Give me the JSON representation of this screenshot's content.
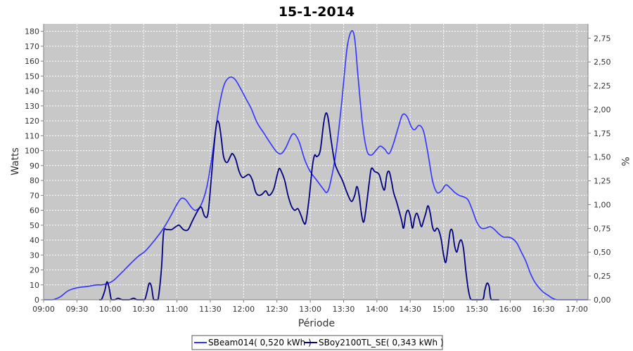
{
  "chart_data": {
    "type": "line",
    "title": "15-1-2014",
    "xlabel": "Période",
    "ylabel": "Watts",
    "y2label": "%",
    "x_ticks": [
      "09:00",
      "09:30",
      "10:00",
      "10:30",
      "11:00",
      "11:30",
      "12:00",
      "12:30",
      "13:00",
      "13:30",
      "14:00",
      "14:30",
      "15:00",
      "15:30",
      "16:00",
      "16:30",
      "17:00"
    ],
    "xlim": [
      540,
      1030
    ],
    "ylim": [
      0,
      185
    ],
    "y_ticks": [
      0,
      10,
      20,
      30,
      40,
      50,
      60,
      70,
      80,
      90,
      100,
      110,
      120,
      130,
      140,
      150,
      160,
      170,
      180
    ],
    "y2lim": [
      0,
      2.9
    ],
    "y2_ticks": [
      "0,00",
      "0,25",
      "0,50",
      "0,75",
      "1,00",
      "1,25",
      "1,50",
      "1,75",
      "2,00",
      "2,25",
      "2,50",
      "2,75"
    ],
    "grid": true,
    "legend_position": "bottom",
    "series": [
      {
        "name": "SBeam014( 0,520 kWh )",
        "color": "#3333ff",
        "points": [
          [
            540,
            0
          ],
          [
            548,
            0
          ],
          [
            555,
            2
          ],
          [
            562,
            6
          ],
          [
            570,
            8
          ],
          [
            580,
            9
          ],
          [
            588,
            10
          ],
          [
            592,
            10
          ],
          [
            598,
            11
          ],
          [
            603,
            13
          ],
          [
            610,
            18
          ],
          [
            618,
            24
          ],
          [
            625,
            29
          ],
          [
            632,
            33
          ],
          [
            640,
            40
          ],
          [
            648,
            48
          ],
          [
            655,
            57
          ],
          [
            660,
            64
          ],
          [
            664,
            68
          ],
          [
            668,
            67
          ],
          [
            673,
            62
          ],
          [
            677,
            60
          ],
          [
            682,
            64
          ],
          [
            687,
            76
          ],
          [
            692,
            98
          ],
          [
            697,
            125
          ],
          [
            702,
            143
          ],
          [
            707,
            149
          ],
          [
            712,
            148
          ],
          [
            717,
            142
          ],
          [
            722,
            135
          ],
          [
            727,
            128
          ],
          [
            732,
            119
          ],
          [
            738,
            112
          ],
          [
            745,
            104
          ],
          [
            750,
            99
          ],
          [
            754,
            98
          ],
          [
            758,
            102
          ],
          [
            763,
            110
          ],
          [
            766,
            111
          ],
          [
            770,
            106
          ],
          [
            775,
            94
          ],
          [
            780,
            86
          ],
          [
            786,
            80
          ],
          [
            792,
            74
          ],
          [
            795,
            72
          ],
          [
            798,
            78
          ],
          [
            803,
            98
          ],
          [
            808,
            130
          ],
          [
            813,
            168
          ],
          [
            817,
            180
          ],
          [
            820,
            175
          ],
          [
            823,
            150
          ],
          [
            827,
            118
          ],
          [
            831,
            100
          ],
          [
            835,
            97
          ],
          [
            839,
            100
          ],
          [
            843,
            103
          ],
          [
            847,
            101
          ],
          [
            851,
            98
          ],
          [
            855,
            105
          ],
          [
            859,
            115
          ],
          [
            863,
            124
          ],
          [
            867,
            123
          ],
          [
            871,
            116
          ],
          [
            874,
            114
          ],
          [
            878,
            117
          ],
          [
            882,
            113
          ],
          [
            886,
            98
          ],
          [
            890,
            80
          ],
          [
            894,
            72
          ],
          [
            898,
            73
          ],
          [
            902,
            77
          ],
          [
            906,
            75
          ],
          [
            910,
            72
          ],
          [
            914,
            70
          ],
          [
            918,
            69
          ],
          [
            922,
            67
          ],
          [
            926,
            60
          ],
          [
            930,
            52
          ],
          [
            934,
            48
          ],
          [
            938,
            48
          ],
          [
            942,
            49
          ],
          [
            946,
            47
          ],
          [
            950,
            44
          ],
          [
            954,
            42
          ],
          [
            958,
            42
          ],
          [
            962,
            41
          ],
          [
            966,
            38
          ],
          [
            970,
            32
          ],
          [
            974,
            26
          ],
          [
            978,
            18
          ],
          [
            982,
            12
          ],
          [
            986,
            8
          ],
          [
            990,
            5
          ],
          [
            994,
            3
          ],
          [
            998,
            1
          ],
          [
            1002,
            0
          ],
          [
            1008,
            0
          ],
          [
            1030,
            0
          ]
        ]
      },
      {
        "name": "SBoy2100TL_SE( 0,343 kWh )",
        "color": "#000080",
        "points": [
          [
            590,
            0
          ],
          [
            592,
            0
          ],
          [
            595,
            6
          ],
          [
            597,
            12
          ],
          [
            599,
            8
          ],
          [
            601,
            0
          ],
          [
            604,
            0
          ],
          [
            607,
            1
          ],
          [
            611,
            0
          ],
          [
            617,
            0
          ],
          [
            621,
            1
          ],
          [
            624,
            0
          ],
          [
            628,
            0
          ],
          [
            631,
            0
          ],
          [
            633,
            5
          ],
          [
            635,
            11
          ],
          [
            637,
            9
          ],
          [
            639,
            0
          ],
          [
            641,
            0
          ],
          [
            643,
            0
          ],
          [
            646,
            20
          ],
          [
            648,
            45
          ],
          [
            651,
            47
          ],
          [
            655,
            47
          ],
          [
            659,
            49
          ],
          [
            662,
            50
          ],
          [
            666,
            47
          ],
          [
            670,
            47
          ],
          [
            674,
            53
          ],
          [
            679,
            60
          ],
          [
            682,
            62
          ],
          [
            685,
            56
          ],
          [
            688,
            58
          ],
          [
            691,
            82
          ],
          [
            694,
            108
          ],
          [
            696,
            119
          ],
          [
            698,
            118
          ],
          [
            700,
            108
          ],
          [
            702,
            96
          ],
          [
            705,
            92
          ],
          [
            708,
            96
          ],
          [
            710,
            98
          ],
          [
            713,
            94
          ],
          [
            716,
            86
          ],
          [
            719,
            82
          ],
          [
            722,
            83
          ],
          [
            725,
            84
          ],
          [
            728,
            80
          ],
          [
            731,
            72
          ],
          [
            734,
            70
          ],
          [
            737,
            71
          ],
          [
            740,
            73
          ],
          [
            743,
            70
          ],
          [
            747,
            74
          ],
          [
            750,
            83
          ],
          [
            752,
            88
          ],
          [
            754,
            86
          ],
          [
            757,
            80
          ],
          [
            760,
            70
          ],
          [
            763,
            63
          ],
          [
            766,
            60
          ],
          [
            769,
            61
          ],
          [
            772,
            56
          ],
          [
            774,
            52
          ],
          [
            776,
            52
          ],
          [
            779,
            68
          ],
          [
            782,
            90
          ],
          [
            784,
            97
          ],
          [
            786,
            96
          ],
          [
            789,
            100
          ],
          [
            792,
            118
          ],
          [
            794,
            125
          ],
          [
            796,
            122
          ],
          [
            799,
            106
          ],
          [
            802,
            92
          ],
          [
            805,
            86
          ],
          [
            809,
            80
          ],
          [
            813,
            72
          ],
          [
            817,
            66
          ],
          [
            820,
            70
          ],
          [
            822,
            76
          ],
          [
            824,
            70
          ],
          [
            826,
            58
          ],
          [
            828,
            52
          ],
          [
            830,
            60
          ],
          [
            833,
            78
          ],
          [
            835,
            88
          ],
          [
            838,
            86
          ],
          [
            842,
            84
          ],
          [
            845,
            76
          ],
          [
            847,
            74
          ],
          [
            849,
            84
          ],
          [
            851,
            86
          ],
          [
            853,
            80
          ],
          [
            855,
            72
          ],
          [
            858,
            65
          ],
          [
            862,
            54
          ],
          [
            864,
            48
          ],
          [
            866,
            57
          ],
          [
            868,
            60
          ],
          [
            870,
            56
          ],
          [
            872,
            48
          ],
          [
            874,
            55
          ],
          [
            876,
            58
          ],
          [
            878,
            54
          ],
          [
            880,
            49
          ],
          [
            882,
            53
          ],
          [
            884,
            58
          ],
          [
            886,
            63
          ],
          [
            888,
            58
          ],
          [
            890,
            49
          ],
          [
            892,
            46
          ],
          [
            894,
            48
          ],
          [
            896,
            46
          ],
          [
            898,
            40
          ],
          [
            900,
            30
          ],
          [
            902,
            25
          ],
          [
            904,
            35
          ],
          [
            906,
            46
          ],
          [
            908,
            46
          ],
          [
            910,
            36
          ],
          [
            912,
            32
          ],
          [
            914,
            38
          ],
          [
            916,
            40
          ],
          [
            918,
            34
          ],
          [
            920,
            20
          ],
          [
            922,
            8
          ],
          [
            924,
            1
          ],
          [
            926,
            0
          ],
          [
            935,
            0
          ],
          [
            937,
            6
          ],
          [
            939,
            11
          ],
          [
            941,
            9
          ],
          [
            943,
            0
          ],
          [
            950,
            0
          ]
        ]
      }
    ]
  }
}
